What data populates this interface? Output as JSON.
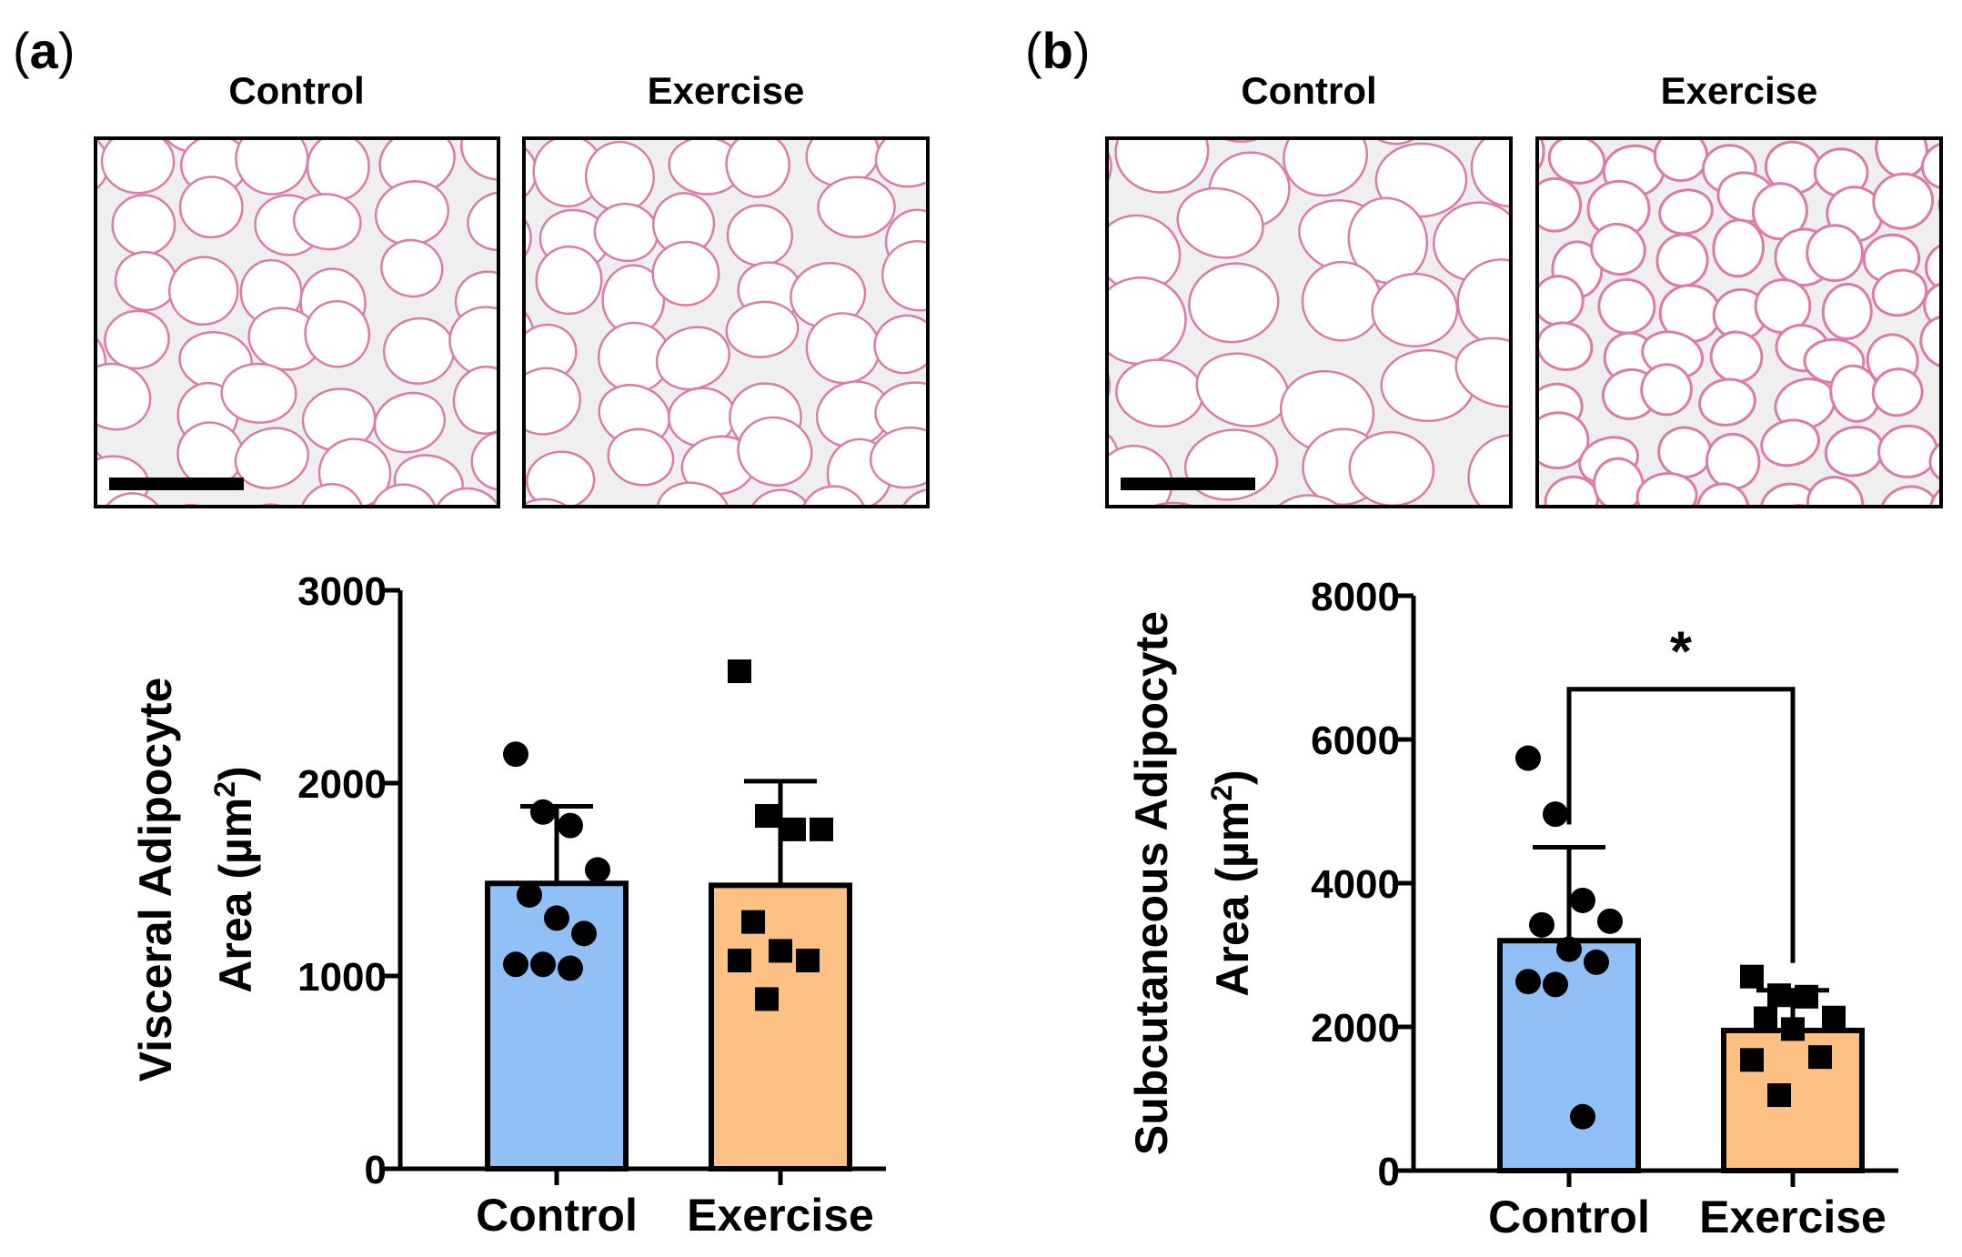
{
  "panels": [
    {
      "label": "a",
      "images": [
        {
          "title": "Control"
        },
        {
          "title": "Exercise"
        }
      ]
    },
    {
      "label": "b",
      "images": [
        {
          "title": "Control"
        },
        {
          "title": "Exercise"
        }
      ]
    }
  ],
  "colors": {
    "control": "#90c0f5",
    "exercise": "#fdc184",
    "axis": "#000000",
    "tissue_bg": "#efefef",
    "tissue_stain": "#de7aa8"
  },
  "chart_data": [
    {
      "type": "bar",
      "title": "",
      "categories": [
        "Control",
        "Exercise"
      ],
      "values": [
        1480,
        1470
      ],
      "errors": [
        400,
        540
      ],
      "ylabel_line1": "Visceral Adipocyte",
      "ylabel_line2": "Area (µm",
      "ylabel_sup": "2",
      "ylabel_close": ")",
      "ylim": [
        0,
        3000
      ],
      "yticks": [
        0,
        1000,
        2000,
        3000
      ],
      "ytick_labels": [
        "0",
        "1000",
        "2000",
        "3000"
      ],
      "points": [
        [
          2150,
          1850,
          1780,
          1550,
          1420,
          1300,
          1220,
          1060,
          1060,
          1040
        ],
        [
          2580,
          1830,
          1760,
          1760,
          1280,
          1130,
          1080,
          1080,
          880
        ]
      ],
      "markers": [
        "circle",
        "square"
      ],
      "significance": null
    },
    {
      "type": "bar",
      "title": "",
      "categories": [
        "Control",
        "Exercise"
      ],
      "values": [
        3200,
        1950
      ],
      "errors": [
        1300,
        560
      ],
      "ylabel_line1": "Subcutaneous Adipocyte",
      "ylabel_line2": "Area (µm",
      "ylabel_sup": "2",
      "ylabel_close": ")",
      "ylim": [
        0,
        8000
      ],
      "yticks": [
        0,
        2000,
        4000,
        6000,
        8000
      ],
      "ytick_labels": [
        "0",
        "2000",
        "4000",
        "6000",
        "8000"
      ],
      "points": [
        [
          5740,
          4960,
          3760,
          3470,
          3420,
          3080,
          2900,
          2630,
          2590,
          750
        ],
        [
          2700,
          2440,
          2420,
          2130,
          2120,
          1970,
          1580,
          1540,
          1050
        ]
      ],
      "markers": [
        "circle",
        "square"
      ],
      "significance": {
        "label": "*",
        "bracket_top": 6700
      }
    }
  ]
}
